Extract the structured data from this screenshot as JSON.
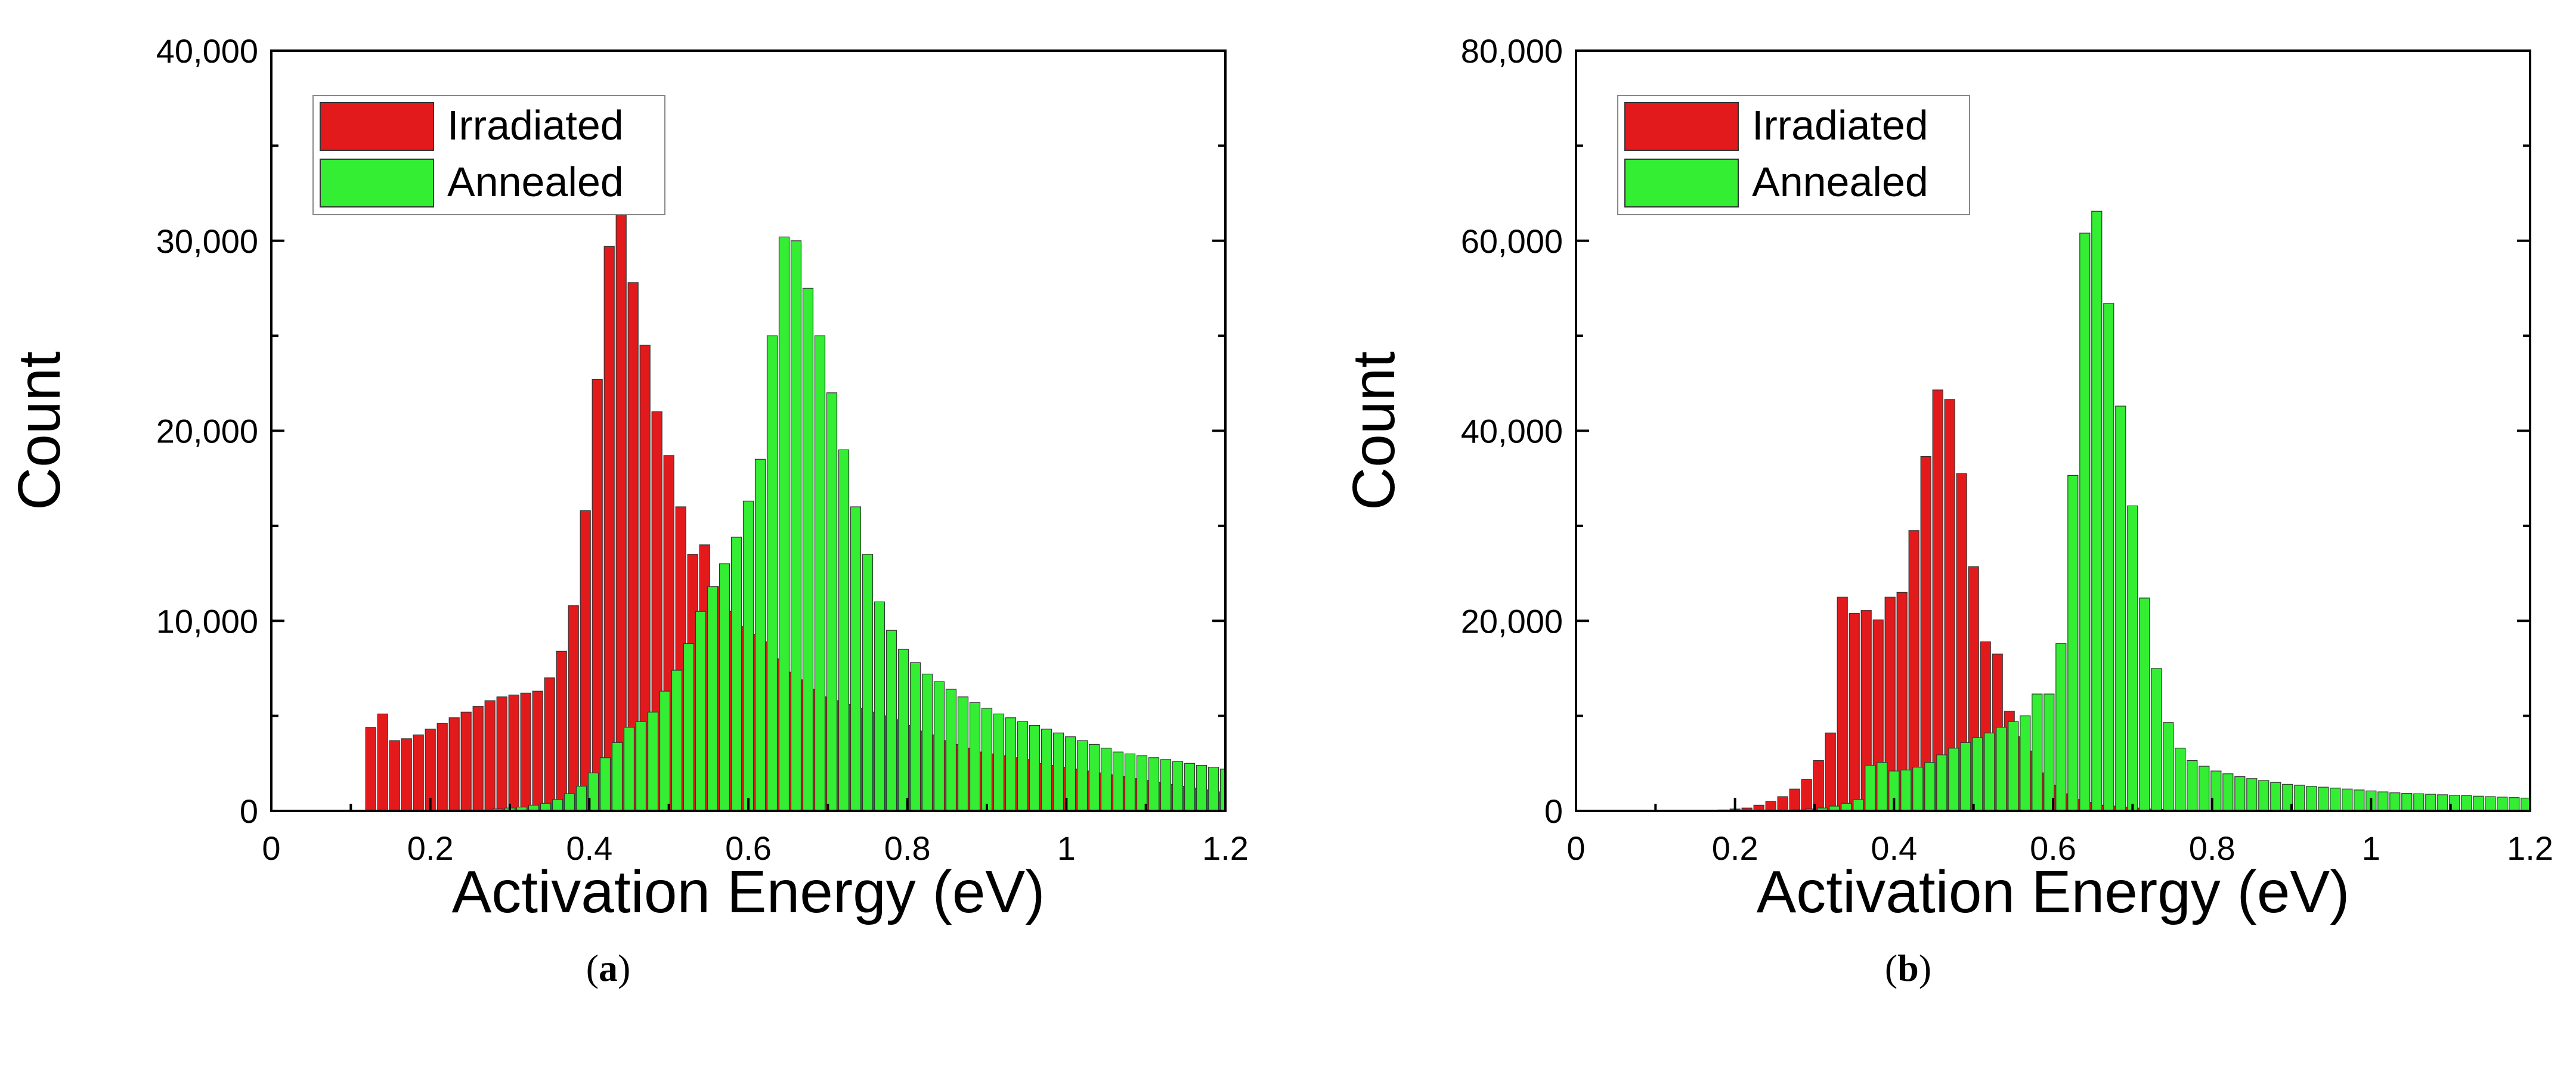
{
  "chart_data": [
    {
      "type": "bar",
      "panel_label": "a",
      "xlabel": "Activation Energy (eV)",
      "ylabel": "Count",
      "xlim": [
        0,
        1.2
      ],
      "ylim": [
        0,
        40000
      ],
      "xticks": [
        "0",
        "0.2",
        "0.4",
        "0.6",
        "0.8",
        "1",
        "1.2"
      ],
      "yticks": [
        "0",
        "10,000",
        "20,000",
        "30,000",
        "40,000"
      ],
      "legend_position": "top-left",
      "series": [
        {
          "name": "Irradiated",
          "color": "#e31a1c",
          "x": [
            0.125,
            0.14,
            0.155,
            0.17,
            0.185,
            0.2,
            0.215,
            0.23,
            0.245,
            0.26,
            0.275,
            0.29,
            0.305,
            0.32,
            0.335,
            0.35,
            0.365,
            0.38,
            0.395,
            0.41,
            0.425,
            0.44,
            0.455,
            0.47,
            0.485,
            0.5,
            0.515,
            0.53,
            0.545,
            0.56,
            0.575,
            0.59,
            0.605,
            0.62,
            0.635,
            0.65,
            0.665,
            0.68,
            0.695,
            0.71,
            0.725,
            0.74,
            0.755,
            0.77,
            0.785,
            0.8,
            0.815,
            0.83,
            0.845,
            0.86,
            0.875,
            0.89,
            0.905,
            0.92,
            0.935,
            0.95,
            0.965,
            0.98,
            0.995,
            1.01,
            1.025,
            1.04,
            1.055,
            1.07,
            1.085,
            1.1,
            1.115,
            1.13,
            1.145,
            1.16,
            1.175,
            1.19
          ],
          "values": [
            4400,
            5100,
            3700,
            3800,
            4000,
            4300,
            4600,
            4900,
            5200,
            5500,
            5800,
            6000,
            6100,
            6200,
            6300,
            7000,
            8400,
            10800,
            15800,
            22700,
            29700,
            31500,
            27800,
            24500,
            21000,
            18700,
            16000,
            13500,
            14000,
            11800,
            10500,
            9700,
            9300,
            8900,
            8000,
            7300,
            6900,
            6400,
            6000,
            5800,
            5600,
            5400,
            5200,
            5000,
            4800,
            4500,
            4200,
            4000,
            3700,
            3500,
            3300,
            3100,
            3000,
            2900,
            2800,
            2700,
            2500,
            2400,
            2300,
            2200,
            2100,
            2000,
            1900,
            1800,
            1700,
            1600,
            1500,
            1400,
            1300,
            1200,
            1100,
            1000
          ]
        },
        {
          "name": "Annealed",
          "color": "#33ee33",
          "x": [
            0.285,
            0.3,
            0.315,
            0.33,
            0.345,
            0.36,
            0.375,
            0.39,
            0.405,
            0.42,
            0.435,
            0.45,
            0.465,
            0.48,
            0.495,
            0.51,
            0.525,
            0.54,
            0.555,
            0.57,
            0.585,
            0.6,
            0.615,
            0.63,
            0.645,
            0.66,
            0.675,
            0.69,
            0.705,
            0.72,
            0.735,
            0.75,
            0.765,
            0.78,
            0.795,
            0.81,
            0.825,
            0.84,
            0.855,
            0.87,
            0.885,
            0.9,
            0.915,
            0.93,
            0.945,
            0.96,
            0.975,
            0.99,
            1.005,
            1.02,
            1.035,
            1.05,
            1.065,
            1.08,
            1.095,
            1.11,
            1.125,
            1.14,
            1.155,
            1.17,
            1.185,
            1.2
          ],
          "values": [
            100,
            150,
            200,
            300,
            400,
            600,
            900,
            1300,
            2000,
            2800,
            3600,
            4400,
            4700,
            5200,
            6300,
            7400,
            8800,
            10500,
            11800,
            13000,
            14400,
            16300,
            18500,
            25000,
            30200,
            30000,
            27500,
            25000,
            22000,
            19000,
            16000,
            13500,
            11000,
            9500,
            8500,
            7800,
            7200,
            6800,
            6400,
            6000,
            5700,
            5400,
            5100,
            4900,
            4700,
            4500,
            4300,
            4100,
            3900,
            3700,
            3500,
            3300,
            3100,
            3000,
            2900,
            2800,
            2700,
            2600,
            2500,
            2400,
            2300,
            2200
          ]
        }
      ]
    },
    {
      "type": "bar",
      "panel_label": "b",
      "xlabel": "Activation Energy (eV)",
      "ylabel": "Count",
      "xlim": [
        0,
        1.2
      ],
      "ylim": [
        0,
        80000
      ],
      "xticks": [
        "0",
        "0.2",
        "0.4",
        "0.6",
        "0.8",
        "1",
        "1.2"
      ],
      "yticks": [
        "0",
        "20,000",
        "40,000",
        "60,000",
        "80,000"
      ],
      "legend_position": "top-left",
      "series": [
        {
          "name": "Irradiated",
          "color": "#e31a1c",
          "x": [
            0.185,
            0.2,
            0.215,
            0.23,
            0.245,
            0.26,
            0.275,
            0.29,
            0.305,
            0.32,
            0.335,
            0.35,
            0.365,
            0.38,
            0.395,
            0.41,
            0.425,
            0.44,
            0.455,
            0.47,
            0.485,
            0.5,
            0.515,
            0.53,
            0.545,
            0.56,
            0.575,
            0.59,
            0.605,
            0.62,
            0.635,
            0.65,
            0.665,
            0.68,
            0.695,
            0.71,
            0.725,
            0.74,
            0.755,
            0.77,
            0.785
          ],
          "values": [
            100,
            200,
            300,
            600,
            1000,
            1500,
            2300,
            3300,
            5300,
            8200,
            22500,
            20800,
            21100,
            20100,
            22500,
            23000,
            29500,
            37300,
            44300,
            43300,
            35500,
            25700,
            17800,
            16500,
            10500,
            7800,
            6300,
            4000,
            2700,
            1800,
            1200,
            900,
            600,
            500,
            400,
            300,
            200,
            150,
            100,
            100,
            80
          ]
        },
        {
          "name": "Annealed",
          "color": "#33ee33",
          "x": [
            0.28,
            0.295,
            0.31,
            0.325,
            0.34,
            0.355,
            0.37,
            0.385,
            0.4,
            0.415,
            0.43,
            0.445,
            0.46,
            0.475,
            0.49,
            0.505,
            0.52,
            0.535,
            0.55,
            0.565,
            0.58,
            0.595,
            0.61,
            0.625,
            0.64,
            0.655,
            0.67,
            0.685,
            0.7,
            0.715,
            0.73,
            0.745,
            0.76,
            0.775,
            0.79,
            0.805,
            0.82,
            0.835,
            0.85,
            0.865,
            0.88,
            0.895,
            0.91,
            0.925,
            0.94,
            0.955,
            0.97,
            0.985,
            1.0,
            1.015,
            1.03,
            1.045,
            1.06,
            1.075,
            1.09,
            1.105,
            1.12,
            1.135,
            1.15,
            1.165,
            1.18,
            1.195
          ],
          "values": [
            100,
            200,
            300,
            500,
            800,
            1200,
            4800,
            5100,
            4200,
            4300,
            4600,
            5100,
            5900,
            6600,
            7200,
            7700,
            8200,
            8800,
            9400,
            10000,
            12300,
            12300,
            17600,
            35300,
            60800,
            63100,
            53400,
            42600,
            32100,
            22400,
            15000,
            9300,
            6600,
            5300,
            4700,
            4200,
            3900,
            3600,
            3400,
            3200,
            3000,
            2800,
            2700,
            2600,
            2500,
            2400,
            2300,
            2200,
            2100,
            2000,
            1900,
            1850,
            1800,
            1750,
            1700,
            1650,
            1600,
            1550,
            1500,
            1450,
            1400,
            1350
          ]
        }
      ]
    }
  ]
}
